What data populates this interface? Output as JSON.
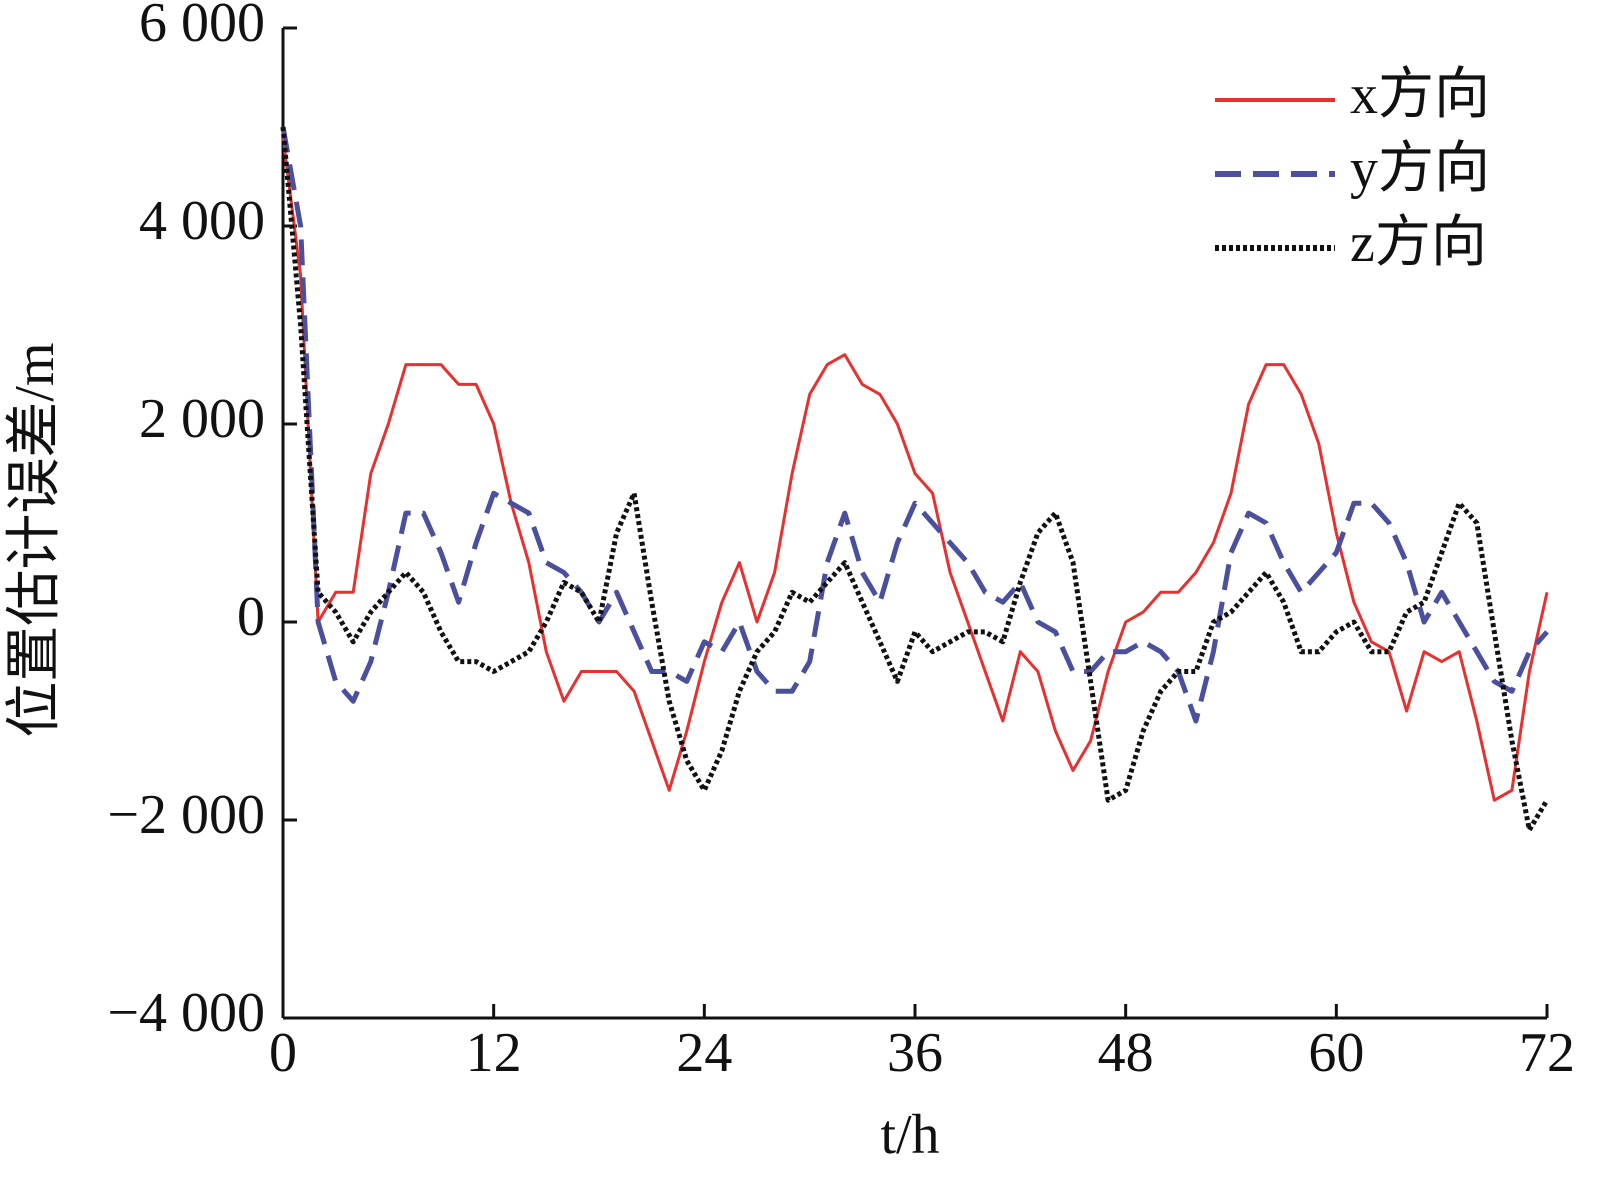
{
  "chart_data": {
    "type": "line",
    "x_label": "t/h",
    "y_label": "位置估计误差/m",
    "x": [
      0,
      1,
      2,
      3,
      4,
      5,
      6,
      7,
      8,
      9,
      10,
      11,
      12,
      13,
      14,
      15,
      16,
      17,
      18,
      19,
      20,
      21,
      22,
      23,
      24,
      25,
      26,
      27,
      28,
      29,
      30,
      31,
      32,
      33,
      34,
      35,
      36,
      37,
      38,
      39,
      40,
      41,
      42,
      43,
      44,
      45,
      46,
      47,
      48,
      49,
      50,
      51,
      52,
      53,
      54,
      55,
      56,
      57,
      58,
      59,
      60,
      61,
      62,
      63,
      64,
      65,
      66,
      67,
      68,
      69,
      70,
      71,
      72
    ],
    "series": [
      {
        "name": "x方向",
        "color": "#e8312f",
        "style": "solid",
        "values": [
          4900,
          3500,
          0,
          300,
          300,
          1500,
          2000,
          2600,
          2600,
          2600,
          2400,
          2400,
          2000,
          1200,
          600,
          -300,
          -800,
          -500,
          -500,
          -500,
          -700,
          -1200,
          -1700,
          -1100,
          -400,
          200,
          600,
          0,
          500,
          1500,
          2300,
          2600,
          2700,
          2400,
          2300,
          2000,
          1500,
          1300,
          500,
          0,
          -500,
          -1000,
          -300,
          -500,
          -1100,
          -1500,
          -1200,
          -500,
          0,
          100,
          300,
          300,
          500,
          800,
          1300,
          2200,
          2600,
          2600,
          2300,
          1800,
          900,
          200,
          -200,
          -300,
          -900,
          -300,
          -400,
          -300,
          -1000,
          -1800,
          -1700,
          -500,
          300
        ]
      },
      {
        "name": "y方向",
        "color": "#4a4f9e",
        "style": "dashed",
        "values": [
          5000,
          4000,
          0,
          -600,
          -800,
          -400,
          300,
          1100,
          1100,
          700,
          200,
          800,
          1300,
          1200,
          1100,
          600,
          500,
          300,
          0,
          300,
          -100,
          -500,
          -500,
          -600,
          -200,
          -300,
          0,
          -500,
          -700,
          -700,
          -400,
          600,
          1100,
          500,
          200,
          800,
          1200,
          1000,
          800,
          600,
          300,
          200,
          400,
          0,
          -100,
          -500,
          -500,
          -300,
          -300,
          -200,
          -300,
          -500,
          -1000,
          -300,
          700,
          1100,
          1000,
          600,
          300,
          500,
          700,
          1200,
          1200,
          1000,
          600,
          0,
          300,
          0,
          -300,
          -600,
          -700,
          -300,
          -100
        ]
      },
      {
        "name": "z方向",
        "color": "#111111",
        "style": "dotted",
        "values": [
          5000,
          3000,
          300,
          100,
          -200,
          100,
          300,
          500,
          300,
          -100,
          -400,
          -400,
          -500,
          -400,
          -300,
          0,
          400,
          300,
          0,
          900,
          1300,
          200,
          -800,
          -1400,
          -1700,
          -1300,
          -700,
          -300,
          -100,
          300,
          200,
          400,
          600,
          200,
          -200,
          -600,
          -100,
          -300,
          -200,
          -100,
          -100,
          -200,
          400,
          900,
          1100,
          600,
          -600,
          -1800,
          -1700,
          -1100,
          -700,
          -500,
          -500,
          0,
          100,
          300,
          500,
          200,
          -300,
          -300,
          -100,
          0,
          -300,
          -300,
          100,
          200,
          700,
          1200,
          1000,
          -100,
          -1200,
          -2100,
          -1800
        ]
      }
    ],
    "xlim": [
      0,
      72
    ],
    "xticks": [
      0,
      12,
      24,
      36,
      48,
      60,
      72
    ],
    "ylim": [
      -4000,
      6000
    ],
    "yticks": [
      {
        "value": -4000,
        "label": "−4 000"
      },
      {
        "value": -2000,
        "label": "−2 000"
      },
      0,
      {
        "value": 2000,
        "label": "2 000"
      },
      {
        "value": 4000,
        "label": "4 000"
      },
      {
        "value": 6000,
        "label": "6 000"
      }
    ],
    "grid": false,
    "legend": "upper right"
  }
}
